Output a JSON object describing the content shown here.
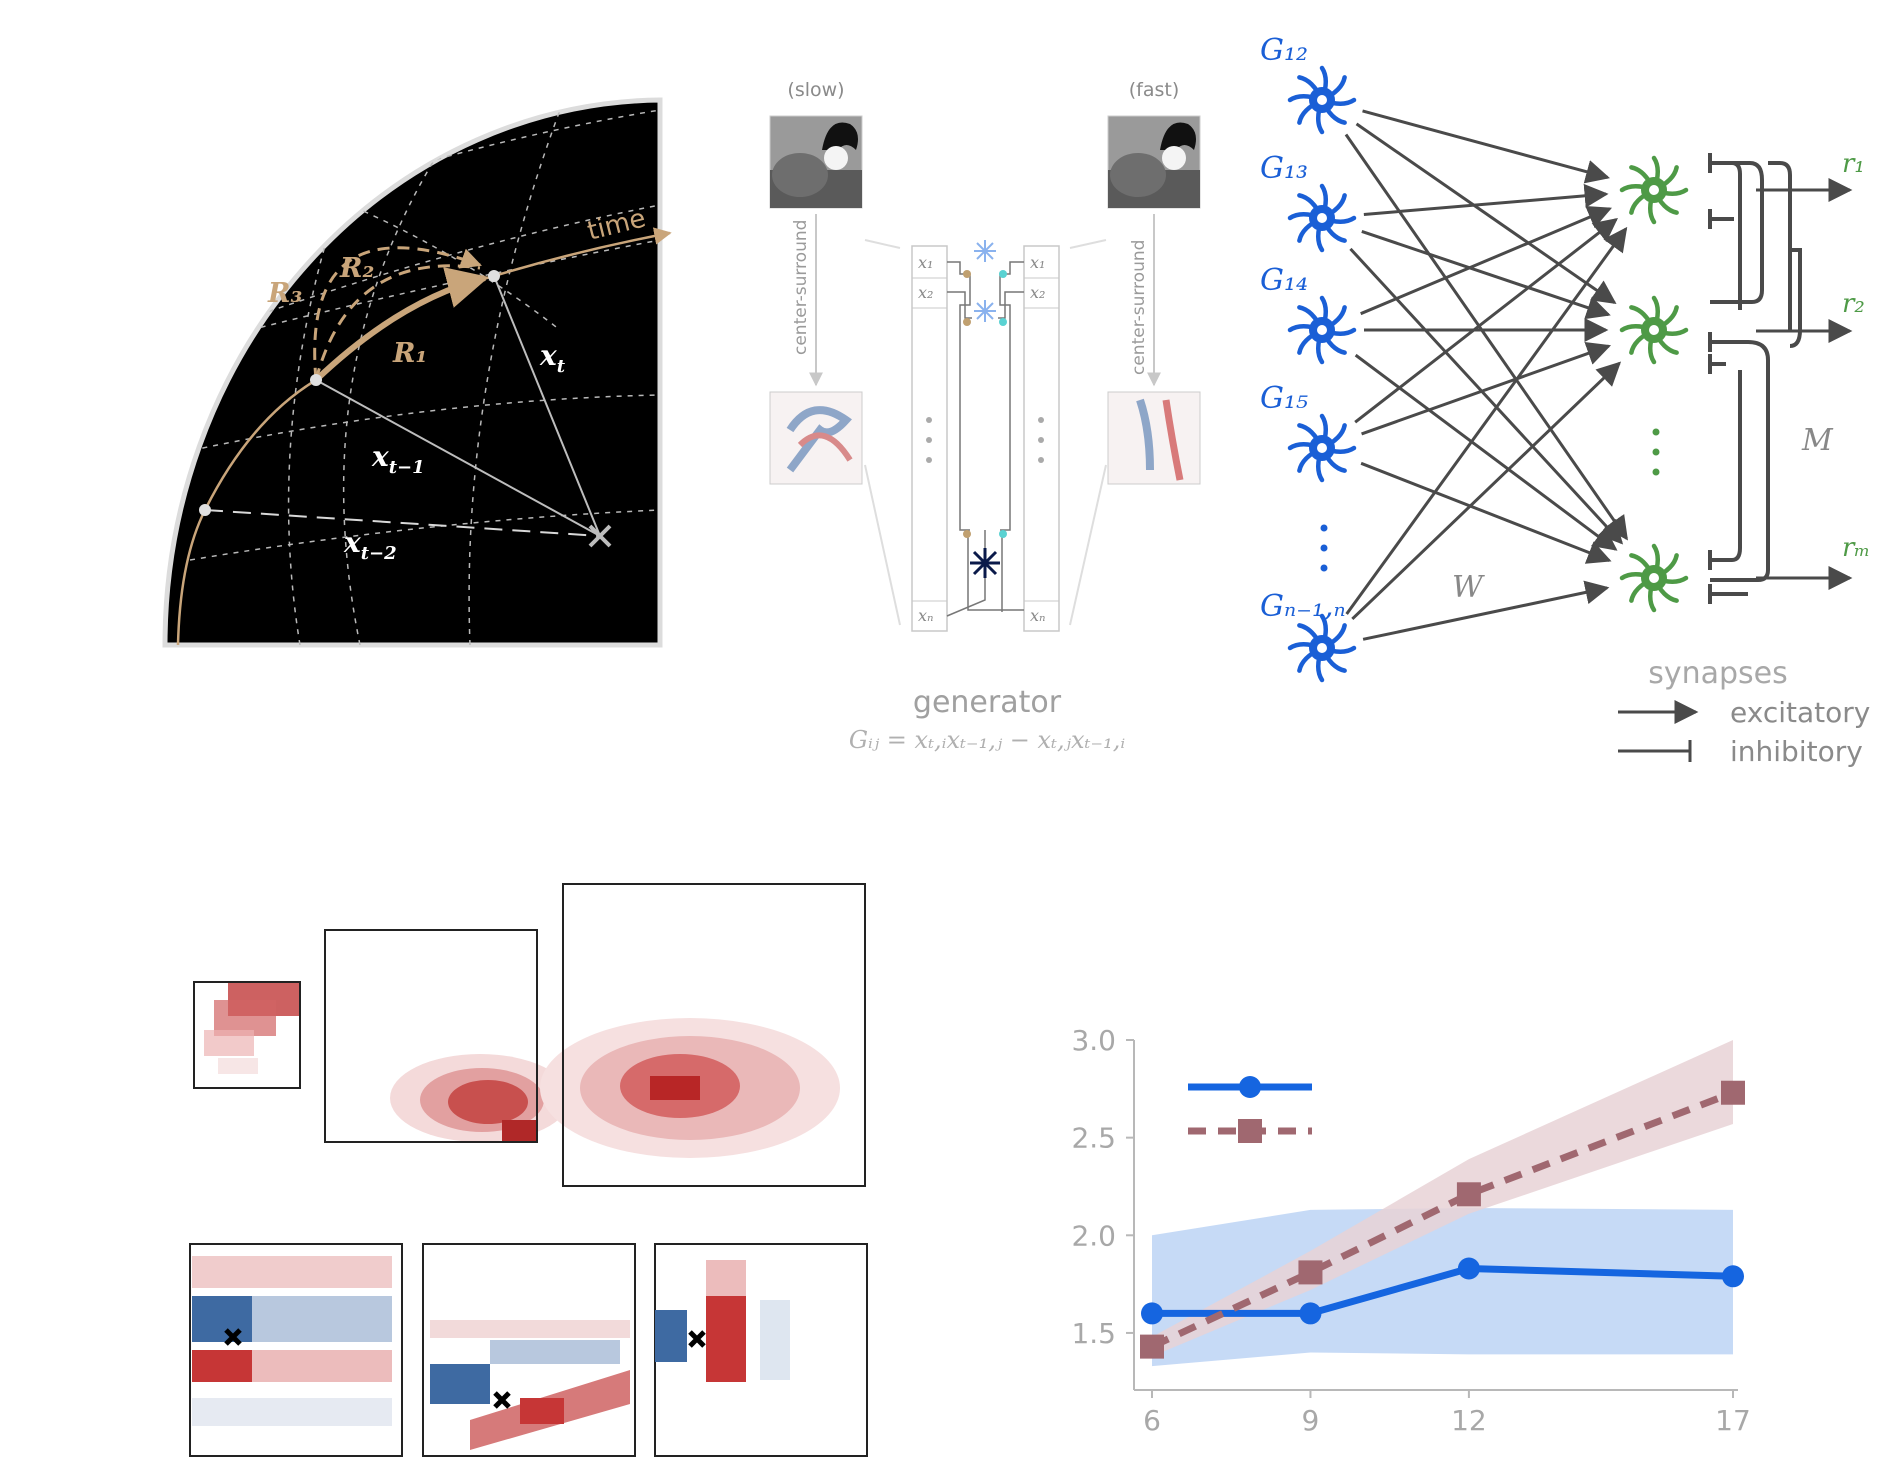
{
  "panel_a": {
    "time_label": "time",
    "rotation_labels": [
      "R₃",
      "R₂",
      "R₁"
    ],
    "vector_labels": [
      "x",
      "x",
      "x"
    ],
    "vector_subscripts": [
      "t",
      "t−1",
      "t−2"
    ]
  },
  "panel_b": {
    "slow_label": "(slow)",
    "fast_label": "(fast)",
    "filter_label": "center-surround",
    "input_labels": [
      "x₁",
      "x₂",
      "xₙ"
    ],
    "generator_title": "generator",
    "generator_formula": "Gᵢⱼ = xₜ,ᵢxₜ₋₁,ⱼ − xₜ,ⱼxₜ₋₁,ᵢ"
  },
  "panel_c": {
    "generator_neurons": [
      "G₁₂",
      "G₁₃",
      "G₁₄",
      "G₁₅",
      "Gₙ₋₁,ₙ"
    ],
    "output_labels": [
      "r₁",
      "r₂",
      "rₘ"
    ],
    "weight_label": "W",
    "lateral_label": "M",
    "synapses_title": "synapses",
    "excitatory_label": "excitatory",
    "inhibitory_label": "inhibitory",
    "colors": {
      "generator": "#1a5fd6",
      "output": "#4e9a46",
      "edges": "#4a4a4a"
    }
  },
  "chart_data": {
    "type": "line",
    "x": [
      6,
      9,
      12,
      17
    ],
    "xlim": [
      6,
      17
    ],
    "ylim": [
      1.3,
      3.0
    ],
    "xticks": [
      6,
      9,
      12,
      17
    ],
    "yticks": [
      1.5,
      2.0,
      2.5,
      3.0
    ],
    "ytick_labels": [
      "1.5",
      "2.0",
      "2.5",
      "3.0"
    ],
    "legend": "top-left",
    "series": [
      {
        "values": [
          1.6,
          1.6,
          1.83,
          1.79
        ],
        "color": "#1565e0",
        "style": "solid",
        "marker": "circle",
        "band": {
          "lower": [
            1.33,
            1.4,
            1.39,
            1.39
          ],
          "upper": [
            2.0,
            2.13,
            2.14,
            2.13
          ]
        }
      },
      {
        "values": [
          1.43,
          1.81,
          2.21,
          2.73
        ],
        "color": "#a06870",
        "style": "dashed",
        "marker": "square",
        "band": {
          "lower": [
            1.38,
            1.72,
            2.11,
            2.57
          ],
          "upper": [
            1.48,
            1.92,
            2.39,
            3.0
          ]
        }
      }
    ]
  }
}
